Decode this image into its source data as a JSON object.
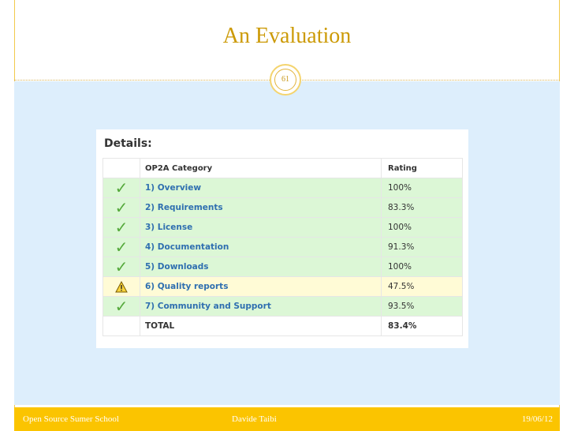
{
  "slide": {
    "title": "An Evaluation",
    "page_number": "61",
    "footer": {
      "left": "Open Source Sumer School",
      "center": "Davide Taibi",
      "right": "19/06/12"
    }
  },
  "colors": {
    "accent": "#fbc400",
    "title": "#cc9a06",
    "content_bg": "#ddeefc",
    "row_ok_bg": "#dcf7d6",
    "row_warn_bg": "#fffbd6",
    "category_text": "#2f6fb0"
  },
  "details": {
    "heading": "Details:",
    "columns": [
      "OP2A Category",
      "Rating"
    ],
    "rows": [
      {
        "status": "check-icon",
        "category": "1) Overview",
        "rating": "100%"
      },
      {
        "status": "check-icon",
        "category": "2) Requirements",
        "rating": "83.3%"
      },
      {
        "status": "check-icon",
        "category": "3) License",
        "rating": "100%"
      },
      {
        "status": "check-icon",
        "category": "4) Documentation",
        "rating": "91.3%"
      },
      {
        "status": "check-icon",
        "category": "5) Downloads",
        "rating": "100%"
      },
      {
        "status": "warning-icon",
        "category": "6) Quality reports",
        "rating": "47.5%"
      },
      {
        "status": "check-icon",
        "category": "7) Community and Support",
        "rating": "93.5%"
      }
    ],
    "total": {
      "label": "TOTAL",
      "rating": "83.4%"
    }
  }
}
